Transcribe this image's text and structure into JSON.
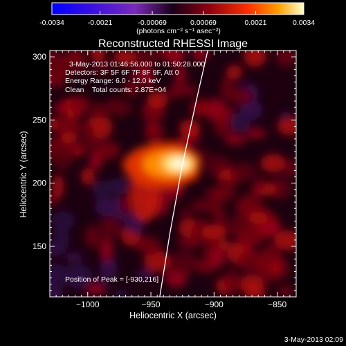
{
  "colorbar": {
    "tick_labels": [
      "-0.0034",
      "-0.0021",
      "-0.00069",
      "0.00069",
      "0.0021",
      "0.0034"
    ],
    "units": "(photons cm⁻² s⁻¹ asec⁻²)",
    "range": [
      -0.0034,
      0.0034
    ]
  },
  "chart_data": {
    "type": "heatmap",
    "title": "Reconstructed RHESSI Image",
    "xlabel": "Heliocentric X (arcsec)",
    "ylabel": "Heliocentric Y (arcsec)",
    "xlim": [
      -1030,
      -835
    ],
    "ylim": [
      110,
      305
    ],
    "x_ticks": [
      -1000,
      -950,
      -900,
      -850
    ],
    "y_ticks": [
      150,
      200,
      250,
      300
    ],
    "x_tick_labels": [
      "−1000",
      "−950",
      "−900",
      "−850"
    ],
    "y_tick_labels": [
      "150",
      "200",
      "250",
      "300"
    ],
    "annotations": [
      "3-May-2013 01:46:56.000 to 01:50:28.000",
      "Detectors: 3F 5F 6F 7F 8F 9F, Att 0",
      "Energy Range: 6.0 - 12.0 keV",
      "Clean    Total counts: 2.87E+04"
    ],
    "peak_label": "Position of Peak = [-930,216]",
    "peak": [
      -930,
      216
    ],
    "limb_points": [
      [
        -943,
        110
      ],
      [
        -935,
        160
      ],
      [
        -925,
        215
      ],
      [
        -913,
        270
      ],
      [
        -905,
        305
      ]
    ],
    "grid": false
  },
  "footer": {
    "timestamp": "3-May-2013 02:09"
  }
}
